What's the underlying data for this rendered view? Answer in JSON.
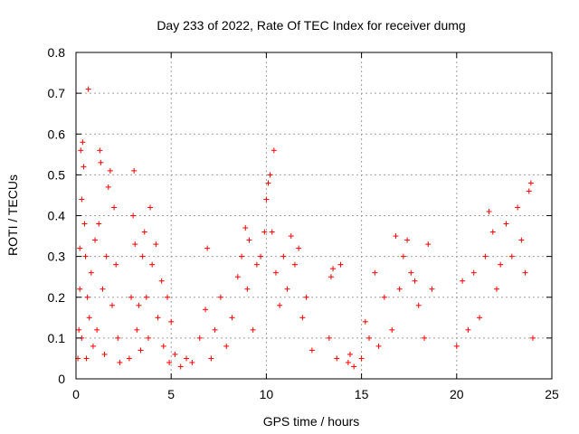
{
  "chart_data": {
    "type": "scatter",
    "title": "Day 233 of 2022, Rate Of TEC Index for receiver dumg",
    "xlabel": "GPS time / hours",
    "ylabel": "ROTI / TECUs",
    "xlim": [
      0,
      25
    ],
    "ylim": [
      0,
      0.8
    ],
    "x_ticks": [
      "0",
      "5",
      "10",
      "15",
      "20",
      "25"
    ],
    "y_ticks": [
      "0",
      "0.1",
      "0.2",
      "0.3",
      "0.4",
      "0.5",
      "0.6",
      "0.7",
      "0.8"
    ],
    "grid": true,
    "marker": "plus",
    "color": "#ff0000",
    "series": [
      {
        "points": [
          [
            0.1,
            0.05
          ],
          [
            0.15,
            0.12
          ],
          [
            0.2,
            0.22
          ],
          [
            0.2,
            0.32
          ],
          [
            0.25,
            0.56
          ],
          [
            0.3,
            0.44
          ],
          [
            0.3,
            0.1
          ],
          [
            0.35,
            0.58
          ],
          [
            0.4,
            0.52
          ],
          [
            0.45,
            0.38
          ],
          [
            0.5,
            0.3
          ],
          [
            0.55,
            0.05
          ],
          [
            0.6,
            0.2
          ],
          [
            0.65,
            0.71
          ],
          [
            0.7,
            0.15
          ],
          [
            0.8,
            0.26
          ],
          [
            0.9,
            0.08
          ],
          [
            1.0,
            0.34
          ],
          [
            1.1,
            0.12
          ],
          [
            1.2,
            0.38
          ],
          [
            1.25,
            0.56
          ],
          [
            1.3,
            0.53
          ],
          [
            1.4,
            0.22
          ],
          [
            1.5,
            0.06
          ],
          [
            1.6,
            0.3
          ],
          [
            1.7,
            0.47
          ],
          [
            1.8,
            0.51
          ],
          [
            1.9,
            0.18
          ],
          [
            2.0,
            0.42
          ],
          [
            2.1,
            0.28
          ],
          [
            2.2,
            0.1
          ],
          [
            2.3,
            0.04
          ],
          [
            2.8,
            0.05
          ],
          [
            2.9,
            0.2
          ],
          [
            3.0,
            0.4
          ],
          [
            3.05,
            0.51
          ],
          [
            3.1,
            0.33
          ],
          [
            3.2,
            0.12
          ],
          [
            3.3,
            0.18
          ],
          [
            3.4,
            0.07
          ],
          [
            3.5,
            0.3
          ],
          [
            3.6,
            0.36
          ],
          [
            3.7,
            0.2
          ],
          [
            3.8,
            0.1
          ],
          [
            3.9,
            0.42
          ],
          [
            4.0,
            0.28
          ],
          [
            4.2,
            0.33
          ],
          [
            4.3,
            0.15
          ],
          [
            4.5,
            0.24
          ],
          [
            4.6,
            0.08
          ],
          [
            4.8,
            0.2
          ],
          [
            4.9,
            0.04
          ],
          [
            5.0,
            0.14
          ],
          [
            5.2,
            0.06
          ],
          [
            5.5,
            0.03
          ],
          [
            5.8,
            0.05
          ],
          [
            6.1,
            0.04
          ],
          [
            6.5,
            0.1
          ],
          [
            6.8,
            0.17
          ],
          [
            6.9,
            0.32
          ],
          [
            7.1,
            0.05
          ],
          [
            7.3,
            0.12
          ],
          [
            7.6,
            0.2
          ],
          [
            7.9,
            0.08
          ],
          [
            8.2,
            0.15
          ],
          [
            8.5,
            0.25
          ],
          [
            8.7,
            0.3
          ],
          [
            8.9,
            0.37
          ],
          [
            9.0,
            0.22
          ],
          [
            9.1,
            0.34
          ],
          [
            9.3,
            0.12
          ],
          [
            9.5,
            0.28
          ],
          [
            9.7,
            0.3
          ],
          [
            9.9,
            0.36
          ],
          [
            10.0,
            0.44
          ],
          [
            10.1,
            0.48
          ],
          [
            10.2,
            0.5
          ],
          [
            10.3,
            0.36
          ],
          [
            10.4,
            0.56
          ],
          [
            10.5,
            0.26
          ],
          [
            10.7,
            0.18
          ],
          [
            10.9,
            0.3
          ],
          [
            11.1,
            0.22
          ],
          [
            11.3,
            0.35
          ],
          [
            11.5,
            0.28
          ],
          [
            11.7,
            0.32
          ],
          [
            11.9,
            0.15
          ],
          [
            12.1,
            0.2
          ],
          [
            12.4,
            0.07
          ],
          [
            13.3,
            0.1
          ],
          [
            13.4,
            0.25
          ],
          [
            13.5,
            0.27
          ],
          [
            13.7,
            0.05
          ],
          [
            13.9,
            0.28
          ],
          [
            14.3,
            0.04
          ],
          [
            14.4,
            0.06
          ],
          [
            14.6,
            0.03
          ],
          [
            15.0,
            0.05
          ],
          [
            15.2,
            0.14
          ],
          [
            15.4,
            0.1
          ],
          [
            15.7,
            0.26
          ],
          [
            15.9,
            0.08
          ],
          [
            16.2,
            0.2
          ],
          [
            16.6,
            0.12
          ],
          [
            16.8,
            0.35
          ],
          [
            17.0,
            0.22
          ],
          [
            17.2,
            0.3
          ],
          [
            17.4,
            0.34
          ],
          [
            17.6,
            0.26
          ],
          [
            17.8,
            0.24
          ],
          [
            18.0,
            0.18
          ],
          [
            18.3,
            0.1
          ],
          [
            18.5,
            0.33
          ],
          [
            18.7,
            0.22
          ],
          [
            20.0,
            0.08
          ],
          [
            20.3,
            0.24
          ],
          [
            20.6,
            0.12
          ],
          [
            20.9,
            0.26
          ],
          [
            21.2,
            0.15
          ],
          [
            21.5,
            0.3
          ],
          [
            21.7,
            0.41
          ],
          [
            21.9,
            0.36
          ],
          [
            22.1,
            0.22
          ],
          [
            22.3,
            0.28
          ],
          [
            22.6,
            0.38
          ],
          [
            22.9,
            0.3
          ],
          [
            23.2,
            0.42
          ],
          [
            23.4,
            0.34
          ],
          [
            23.6,
            0.26
          ],
          [
            23.8,
            0.46
          ],
          [
            23.9,
            0.48
          ],
          [
            24.0,
            0.1
          ]
        ]
      }
    ]
  }
}
